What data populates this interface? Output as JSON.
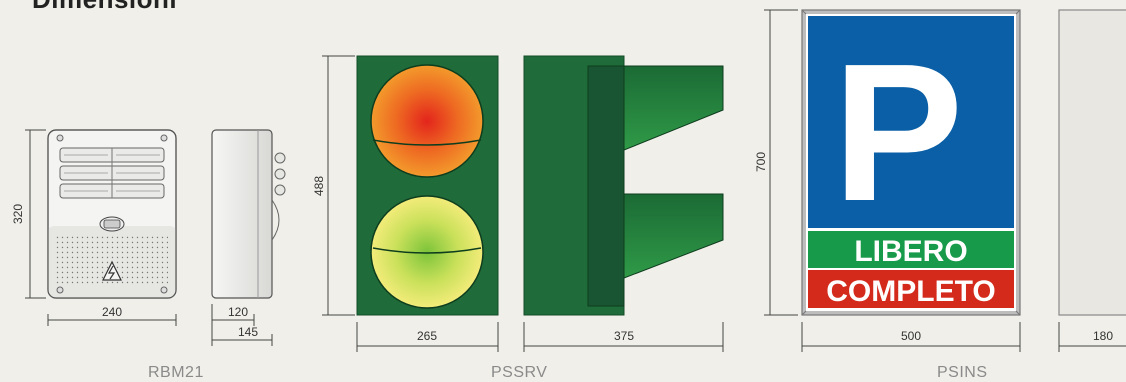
{
  "title": "Dimensioni",
  "products": {
    "rbm21": {
      "label": "RBM21",
      "height": "320",
      "width": "240",
      "side_depth": "120",
      "side_total": "145"
    },
    "pssrv": {
      "label": "PSSRV",
      "height": "488",
      "front_width": "265",
      "side_width": "375"
    },
    "psins": {
      "label": "PSINS",
      "height": "700",
      "width": "500",
      "side_width": "180",
      "letter": "P",
      "libero": "LIBERO",
      "completo": "COMPLETO"
    }
  },
  "colors": {
    "background": "#f0efea",
    "traffic_body": "#1f6b3a",
    "traffic_side": "#195532",
    "sign_blue": "#0a5fa6",
    "sign_green": "#179a4a",
    "sign_red": "#d42a1c",
    "sign_frame": "#a9a9a9"
  }
}
